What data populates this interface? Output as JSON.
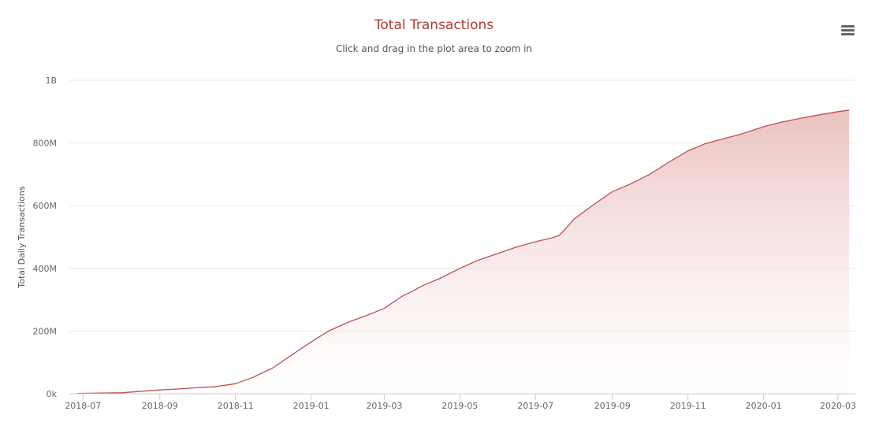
{
  "chart_data": {
    "type": "area",
    "title": "Total Transactions",
    "subtitle": "Click and drag in the plot area to zoom in",
    "xlabel": "",
    "ylabel": "Total Daily Transactions",
    "x_ticks": [
      "2018-07",
      "2018-09",
      "2018-11",
      "2019-01",
      "2019-03",
      "2019-05",
      "2019-07",
      "2019-09",
      "2019-11",
      "2020-01",
      "2020-03"
    ],
    "y_ticks": [
      {
        "value": 0,
        "label": "0k"
      },
      {
        "value": 200000000,
        "label": "200M"
      },
      {
        "value": 400000000,
        "label": "400M"
      },
      {
        "value": 600000000,
        "label": "600M"
      },
      {
        "value": 800000000,
        "label": "800M"
      },
      {
        "value": 1000000000,
        "label": "1B"
      }
    ],
    "ylim": [
      0,
      1000000000
    ],
    "xlim": [
      "2018-06-20",
      "2020-03-15"
    ],
    "grid": true,
    "colors": {
      "line": "#c0504d",
      "fill_top": "#e8b7b5",
      "title": "#b03a2e"
    },
    "series": [
      {
        "x": [
          "2018-06-26",
          "2018-07-15",
          "2018-08-01",
          "2018-08-15",
          "2018-09-01",
          "2018-09-15",
          "2018-10-01",
          "2018-10-15",
          "2018-11-01",
          "2018-11-15",
          "2018-12-01",
          "2018-12-15",
          "2019-01-01",
          "2019-01-15",
          "2019-02-01",
          "2019-02-15",
          "2019-03-01",
          "2019-03-15",
          "2019-03-25",
          "2019-04-01",
          "2019-04-15",
          "2019-05-01",
          "2019-05-15",
          "2019-06-01",
          "2019-06-15",
          "2019-07-01",
          "2019-07-15",
          "2019-07-20",
          "2019-07-25",
          "2019-08-01",
          "2019-08-15",
          "2019-09-01",
          "2019-09-15",
          "2019-10-01",
          "2019-10-15",
          "2019-11-01",
          "2019-11-15",
          "2019-12-01",
          "2019-12-15",
          "2020-01-01",
          "2020-01-15",
          "2020-02-01",
          "2020-02-15",
          "2020-03-01",
          "2020-03-10"
        ],
        "values": [
          1000000,
          2000000,
          3000000,
          7000000,
          12000000,
          15000000,
          19000000,
          22000000,
          32000000,
          52000000,
          82000000,
          120000000,
          165000000,
          200000000,
          230000000,
          250000000,
          272000000,
          310000000,
          330000000,
          345000000,
          368000000,
          400000000,
          425000000,
          448000000,
          467000000,
          485000000,
          498000000,
          505000000,
          525000000,
          557000000,
          598000000,
          645000000,
          668000000,
          700000000,
          735000000,
          775000000,
          798000000,
          815000000,
          830000000,
          852000000,
          866000000,
          880000000,
          890000000,
          900000000,
          905000000
        ]
      }
    ]
  }
}
